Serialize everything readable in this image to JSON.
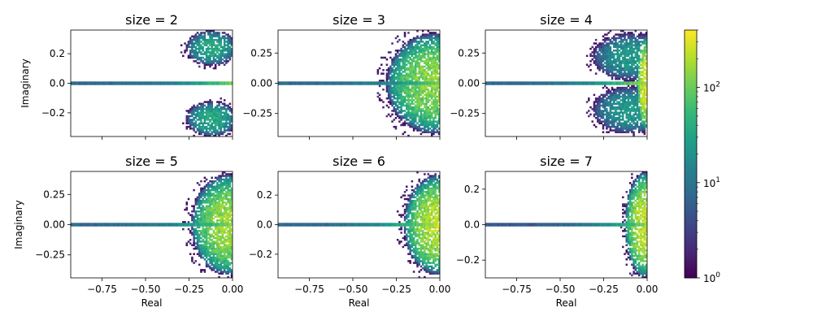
{
  "chart_data": [
    {
      "type": "heatmap",
      "title": "size = 2",
      "xlabel": "",
      "ylabel": "Imaginary",
      "xlim": [
        -0.93,
        0.0
      ],
      "ylim": [
        -0.36,
        0.36
      ],
      "xticks": [
        -0.75,
        -0.5,
        -0.25,
        0.0
      ],
      "xtick_labels": [],
      "yticks": [
        -0.2,
        0.0,
        0.2
      ],
      "ytick_labels": [
        "−0.2",
        "0.0",
        "0.2"
      ],
      "blobs": [
        {
          "cx": -0.12,
          "cy": 0.24,
          "rx": 0.15,
          "ry": 0.12,
          "peak": 40
        },
        {
          "cx": -0.12,
          "cy": -0.24,
          "rx": 0.15,
          "ry": 0.12,
          "peak": 40
        }
      ],
      "real_line": {
        "from": -0.93,
        "to": 0.0,
        "min": 8,
        "max": 120
      }
    },
    {
      "type": "heatmap",
      "title": "size = 3",
      "xlabel": "",
      "ylabel": "",
      "xlim": [
        -0.93,
        0.0
      ],
      "ylim": [
        -0.44,
        0.44
      ],
      "xticks": [
        -0.75,
        -0.5,
        -0.25,
        0.0
      ],
      "xtick_labels": [],
      "yticks": [
        -0.25,
        0.0,
        0.25
      ],
      "ytick_labels": [
        "−0.25",
        "0.00",
        "0.25"
      ],
      "blobs": [
        {
          "cx": -0.03,
          "cy": 0.0,
          "rx": 0.28,
          "ry": 0.42,
          "peak": 150
        }
      ],
      "real_line": {
        "from": -0.93,
        "to": 0.0,
        "min": 8,
        "max": 120
      }
    },
    {
      "type": "heatmap",
      "title": "size = 4",
      "xlabel": "",
      "ylabel": "",
      "xlim": [
        -0.93,
        0.0
      ],
      "ylim": [
        -0.44,
        0.44
      ],
      "xticks": [
        -0.75,
        -0.5,
        -0.25,
        0.0
      ],
      "xtick_labels": [],
      "yticks": [
        -0.25,
        0.0,
        0.25
      ],
      "ytick_labels": [
        "−0.25",
        "0.00",
        "0.25"
      ],
      "blobs": [
        {
          "cx": -0.1,
          "cy": 0.22,
          "rx": 0.22,
          "ry": 0.2,
          "peak": 25
        },
        {
          "cx": -0.1,
          "cy": -0.22,
          "rx": 0.22,
          "ry": 0.2,
          "peak": 25
        },
        {
          "cx": -0.01,
          "cy": 0.0,
          "rx": 0.05,
          "ry": 0.4,
          "peak": 300
        }
      ],
      "real_line": {
        "from": -0.93,
        "to": 0.0,
        "min": 8,
        "max": 200
      }
    },
    {
      "type": "heatmap",
      "title": "size = 5",
      "xlabel": "Real",
      "ylabel": "Imaginary",
      "xlim": [
        -0.93,
        0.0
      ],
      "ylim": [
        -0.44,
        0.44
      ],
      "xticks": [
        -0.75,
        -0.5,
        -0.25,
        0.0
      ],
      "xtick_labels": [
        "−0.75",
        "−0.50",
        "−0.25",
        "0.00"
      ],
      "yticks": [
        -0.25,
        0.0,
        0.25
      ],
      "ytick_labels": [
        "−0.25",
        "0.00",
        "0.25"
      ],
      "blobs": [
        {
          "cx": -0.02,
          "cy": 0.0,
          "rx": 0.22,
          "ry": 0.42,
          "peak": 180
        }
      ],
      "real_line": {
        "from": -0.93,
        "to": 0.0,
        "min": 8,
        "max": 150
      }
    },
    {
      "type": "heatmap",
      "title": "size = 6",
      "xlabel": "Real",
      "ylabel": "",
      "xlim": [
        -0.93,
        0.0
      ],
      "ylim": [
        -0.36,
        0.36
      ],
      "xticks": [
        -0.75,
        -0.5,
        -0.25,
        0.0
      ],
      "xtick_labels": [
        "−0.75",
        "−0.50",
        "−0.25",
        "0.00"
      ],
      "yticks": [
        -0.2,
        0.0,
        0.2
      ],
      "ytick_labels": [
        "−0.2",
        "0.0",
        "0.2"
      ],
      "blobs": [
        {
          "cx": -0.01,
          "cy": 0.0,
          "rx": 0.2,
          "ry": 0.34,
          "peak": 220
        }
      ],
      "real_line": {
        "from": -0.93,
        "to": 0.0,
        "min": 8,
        "max": 300
      }
    },
    {
      "type": "heatmap",
      "title": "size = 7",
      "xlabel": "Real",
      "ylabel": "",
      "xlim": [
        -0.93,
        0.0
      ],
      "ylim": [
        -0.3,
        0.3
      ],
      "xticks": [
        -0.75,
        -0.5,
        -0.25,
        0.0
      ],
      "xtick_labels": [
        "−0.75",
        "−0.50",
        "−0.25",
        "0.00"
      ],
      "yticks": [
        -0.2,
        0.0,
        0.2
      ],
      "ytick_labels": [
        "−0.2",
        "0.0",
        "0.2"
      ],
      "blobs": [
        {
          "cx": -0.01,
          "cy": 0.0,
          "rx": 0.12,
          "ry": 0.3,
          "peak": 250
        }
      ],
      "real_line": {
        "from": -0.93,
        "to": 0.0,
        "min": 5,
        "max": 150
      }
    }
  ],
  "colorbar": {
    "scale": "log",
    "range": [
      1,
      400
    ],
    "colormap": "viridis",
    "ticks": [
      1,
      10,
      100
    ],
    "tick_labels": [
      "10",
      "10",
      "10"
    ],
    "tick_exponents": [
      "0",
      "1",
      "2"
    ]
  }
}
